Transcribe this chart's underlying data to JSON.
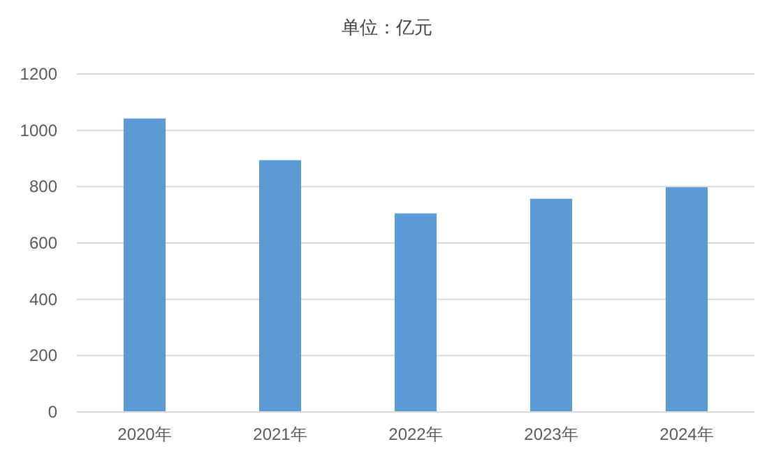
{
  "chart_data": {
    "type": "bar",
    "title": "单位：亿元",
    "categories": [
      "2020年",
      "2021年",
      "2022年",
      "2023年",
      "2024年"
    ],
    "values": [
      1042,
      894,
      705,
      757,
      798
    ],
    "color": "#5b9bd5",
    "ylim": [
      0,
      1200
    ],
    "yticks": [
      0,
      200,
      400,
      600,
      800,
      1000,
      1200
    ],
    "grid": "y"
  }
}
